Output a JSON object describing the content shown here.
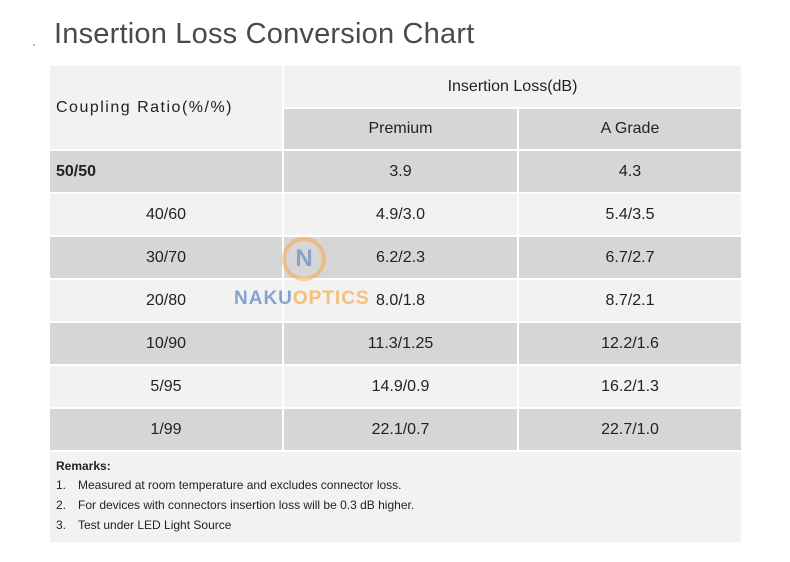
{
  "title": "Insertion Loss Conversion Chart",
  "table": {
    "header_left": "Coupling  Ratio(%/%)",
    "header_group": "Insertion Loss(dB)",
    "col_premium": "Premium",
    "col_agrade": "A Grade",
    "rows": [
      {
        "ratio": "50/50",
        "premium": "3.9",
        "agrade": "4.3"
      },
      {
        "ratio": "40/60",
        "premium": "4.9/3.0",
        "agrade": "5.4/3.5"
      },
      {
        "ratio": "30/70",
        "premium": "6.2/2.3",
        "agrade": "6.7/2.7"
      },
      {
        "ratio": "20/80",
        "premium": "8.0/1.8",
        "agrade": "8.7/2.1"
      },
      {
        "ratio": "10/90",
        "premium": "11.3/1.25",
        "agrade": "12.2/1.6"
      },
      {
        "ratio": "5/95",
        "premium": "14.9/0.9",
        "agrade": "16.2/1.3"
      },
      {
        "ratio": "1/99",
        "premium": "22.1/0.7",
        "agrade": "22.7/1.0"
      }
    ]
  },
  "remarks": {
    "title": "Remarks:",
    "items": [
      {
        "num": "1.",
        "text": "Measured at room temperature and excludes connector loss."
      },
      {
        "num": "2.",
        "text": "For devices with connectors insertion loss will be 0.3 dB higher."
      },
      {
        "num": "3.",
        "text": "Test under LED Light Source"
      }
    ]
  },
  "watermark": {
    "letter": "N",
    "word_part1": "NAKU",
    "word_part2": "OPTICS"
  }
}
